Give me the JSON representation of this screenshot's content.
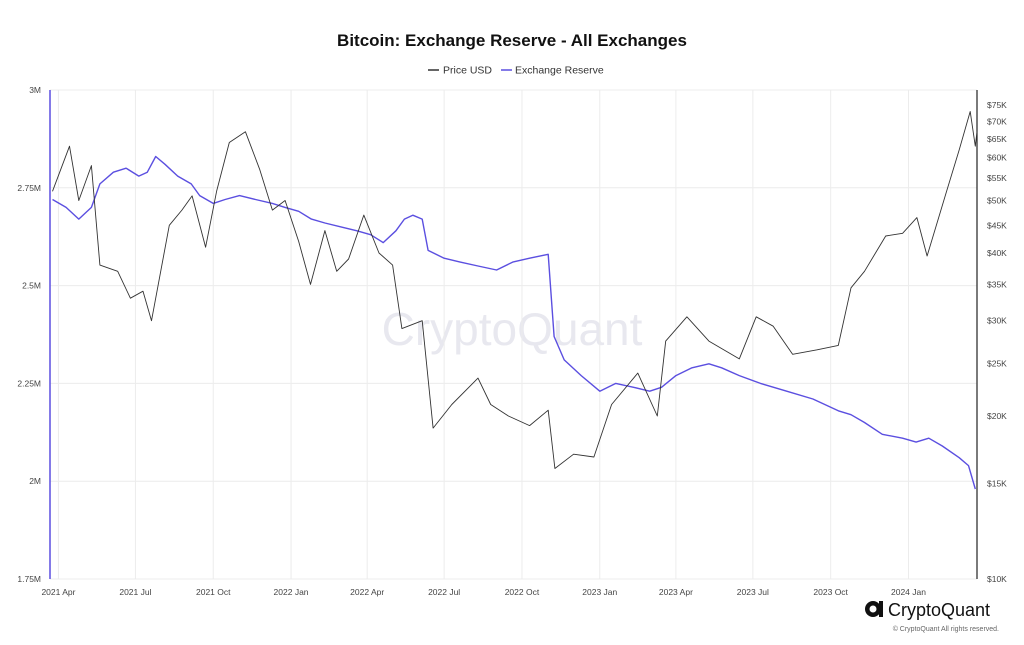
{
  "chart_data": {
    "type": "line",
    "title": "Bitcoin: Exchange Reserve - All Exchanges",
    "legend": [
      "Price USD",
      "Exchange Reserve"
    ],
    "legend_placement": "top-center",
    "grid": true,
    "x_ticks": [
      "2021 Apr",
      "2021 Jul",
      "2021 Oct",
      "2022 Jan",
      "2022 Apr",
      "2022 Jul",
      "2022 Oct",
      "2023 Jan",
      "2023 Apr",
      "2023 Jul",
      "2023 Oct",
      "2024 Jan"
    ],
    "left_ticks": [
      "3M",
      "2.75M",
      "2.5M",
      "2.25M",
      "2M",
      "1.75M"
    ],
    "right_ticks": [
      "$75K",
      "$70K",
      "$65K",
      "$60K",
      "$55K",
      "$50K",
      "$45K",
      "$40K",
      "$35K",
      "$30K",
      "$25K",
      "$20K",
      "$15K",
      "$10K"
    ],
    "ylim_left": [
      1750000,
      3000000
    ],
    "ylim_right": [
      10000,
      80000
    ],
    "right_axis_scale": "log",
    "x_range": [
      "2021-03-22",
      "2024-03-22"
    ],
    "series": [
      {
        "name": "Exchange Reserve",
        "axis": "left",
        "color": "#5b4fe0",
        "points": [
          [
            "2021-03-25",
            2720000
          ],
          [
            "2021-04-10",
            2700000
          ],
          [
            "2021-04-25",
            2670000
          ],
          [
            "2021-05-10",
            2700000
          ],
          [
            "2021-05-20",
            2760000
          ],
          [
            "2021-06-05",
            2790000
          ],
          [
            "2021-06-20",
            2800000
          ],
          [
            "2021-07-05",
            2780000
          ],
          [
            "2021-07-15",
            2790000
          ],
          [
            "2021-07-25",
            2830000
          ],
          [
            "2021-08-05",
            2810000
          ],
          [
            "2021-08-20",
            2780000
          ],
          [
            "2021-09-05",
            2760000
          ],
          [
            "2021-09-15",
            2730000
          ],
          [
            "2021-10-01",
            2710000
          ],
          [
            "2021-10-15",
            2720000
          ],
          [
            "2021-11-01",
            2730000
          ],
          [
            "2021-11-20",
            2720000
          ],
          [
            "2021-12-10",
            2710000
          ],
          [
            "2021-12-25",
            2700000
          ],
          [
            "2022-01-10",
            2690000
          ],
          [
            "2022-01-25",
            2670000
          ],
          [
            "2022-02-10",
            2660000
          ],
          [
            "2022-03-01",
            2650000
          ],
          [
            "2022-03-20",
            2640000
          ],
          [
            "2022-04-05",
            2630000
          ],
          [
            "2022-04-20",
            2610000
          ],
          [
            "2022-05-05",
            2640000
          ],
          [
            "2022-05-15",
            2670000
          ],
          [
            "2022-05-25",
            2680000
          ],
          [
            "2022-06-05",
            2670000
          ],
          [
            "2022-06-12",
            2590000
          ],
          [
            "2022-07-01",
            2570000
          ],
          [
            "2022-07-20",
            2560000
          ],
          [
            "2022-08-10",
            2550000
          ],
          [
            "2022-09-01",
            2540000
          ],
          [
            "2022-09-20",
            2560000
          ],
          [
            "2022-10-10",
            2570000
          ],
          [
            "2022-11-01",
            2580000
          ],
          [
            "2022-11-08",
            2370000
          ],
          [
            "2022-11-20",
            2310000
          ],
          [
            "2022-12-10",
            2270000
          ],
          [
            "2023-01-01",
            2230000
          ],
          [
            "2023-01-20",
            2250000
          ],
          [
            "2023-02-10",
            2240000
          ],
          [
            "2023-03-01",
            2230000
          ],
          [
            "2023-03-15",
            2240000
          ],
          [
            "2023-04-01",
            2270000
          ],
          [
            "2023-04-20",
            2290000
          ],
          [
            "2023-05-10",
            2300000
          ],
          [
            "2023-05-25",
            2290000
          ],
          [
            "2023-06-15",
            2270000
          ],
          [
            "2023-07-10",
            2250000
          ],
          [
            "2023-08-10",
            2230000
          ],
          [
            "2023-09-10",
            2210000
          ],
          [
            "2023-10-10",
            2180000
          ],
          [
            "2023-10-25",
            2170000
          ],
          [
            "2023-11-10",
            2150000
          ],
          [
            "2023-12-01",
            2120000
          ],
          [
            "2023-12-25",
            2110000
          ],
          [
            "2024-01-10",
            2100000
          ],
          [
            "2024-01-25",
            2110000
          ],
          [
            "2024-02-10",
            2090000
          ],
          [
            "2024-03-01",
            2060000
          ],
          [
            "2024-03-12",
            2040000
          ],
          [
            "2024-03-20",
            1980000
          ]
        ]
      },
      {
        "name": "Price USD",
        "axis": "right",
        "color": "#333333",
        "points": [
          [
            "2021-03-25",
            52000
          ],
          [
            "2021-04-14",
            63000
          ],
          [
            "2021-04-25",
            50000
          ],
          [
            "2021-05-10",
            58000
          ],
          [
            "2021-05-20",
            38000
          ],
          [
            "2021-06-10",
            37000
          ],
          [
            "2021-06-25",
            33000
          ],
          [
            "2021-07-10",
            34000
          ],
          [
            "2021-07-20",
            30000
          ],
          [
            "2021-08-10",
            45000
          ],
          [
            "2021-08-25",
            48000
          ],
          [
            "2021-09-06",
            51000
          ],
          [
            "2021-09-22",
            41000
          ],
          [
            "2021-10-05",
            52000
          ],
          [
            "2021-10-20",
            64000
          ],
          [
            "2021-11-08",
            67000
          ],
          [
            "2021-11-25",
            57000
          ],
          [
            "2021-12-10",
            48000
          ],
          [
            "2021-12-25",
            50000
          ],
          [
            "2022-01-10",
            42000
          ],
          [
            "2022-01-24",
            35000
          ],
          [
            "2022-02-10",
            44000
          ],
          [
            "2022-02-24",
            37000
          ],
          [
            "2022-03-10",
            39000
          ],
          [
            "2022-03-28",
            47000
          ],
          [
            "2022-04-15",
            40000
          ],
          [
            "2022-05-01",
            38000
          ],
          [
            "2022-05-12",
            29000
          ],
          [
            "2022-06-05",
            30000
          ],
          [
            "2022-06-18",
            19000
          ],
          [
            "2022-07-10",
            21000
          ],
          [
            "2022-08-10",
            23500
          ],
          [
            "2022-08-25",
            21000
          ],
          [
            "2022-09-15",
            20000
          ],
          [
            "2022-10-10",
            19200
          ],
          [
            "2022-11-01",
            20500
          ],
          [
            "2022-11-09",
            16000
          ],
          [
            "2022-12-01",
            17000
          ],
          [
            "2022-12-25",
            16800
          ],
          [
            "2023-01-15",
            21000
          ],
          [
            "2023-02-15",
            24000
          ],
          [
            "2023-03-10",
            20000
          ],
          [
            "2023-03-20",
            27500
          ],
          [
            "2023-04-14",
            30500
          ],
          [
            "2023-05-10",
            27500
          ],
          [
            "2023-06-15",
            25500
          ],
          [
            "2023-07-05",
            30500
          ],
          [
            "2023-07-25",
            29300
          ],
          [
            "2023-08-17",
            26000
          ],
          [
            "2023-09-15",
            26500
          ],
          [
            "2023-10-10",
            27000
          ],
          [
            "2023-10-25",
            34500
          ],
          [
            "2023-11-10",
            37000
          ],
          [
            "2023-12-05",
            43000
          ],
          [
            "2023-12-25",
            43500
          ],
          [
            "2024-01-11",
            46500
          ],
          [
            "2024-01-23",
            39500
          ],
          [
            "2024-02-15",
            52000
          ],
          [
            "2024-03-01",
            62000
          ],
          [
            "2024-03-14",
            73000
          ],
          [
            "2024-03-20",
            63000
          ],
          [
            "2024-03-22",
            67000
          ]
        ]
      }
    ]
  },
  "watermark": "CryptoQuant",
  "brand": "CryptoQuant",
  "copyright": "© CryptoQuant All rights reserved."
}
